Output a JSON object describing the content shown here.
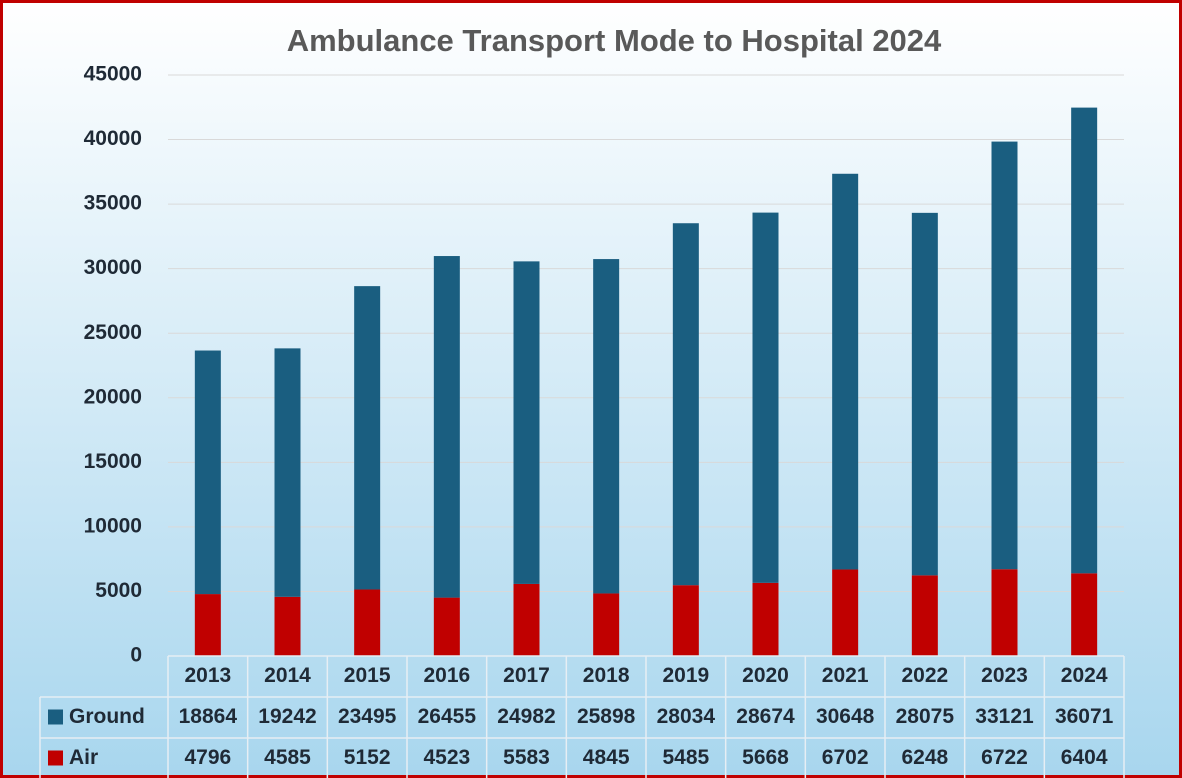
{
  "chart_data": {
    "type": "stacked_bar",
    "title": "Ambulance Transport  Mode to Hospital 2024",
    "categories": [
      "2013",
      "2014",
      "2015",
      "2016",
      "2017",
      "2018",
      "2019",
      "2020",
      "2021",
      "2022",
      "2023",
      "2024"
    ],
    "series": [
      {
        "name": "Ground",
        "color": "#1a5e80",
        "values": [
          18864,
          19242,
          23495,
          26455,
          24982,
          25898,
          28034,
          28674,
          30648,
          28075,
          33121,
          36071
        ]
      },
      {
        "name": "Air",
        "color": "#c00000",
        "values": [
          4796,
          4585,
          5152,
          4523,
          5583,
          4845,
          5485,
          5668,
          6702,
          6248,
          6722,
          6404
        ]
      }
    ],
    "ylim": [
      0,
      45000
    ],
    "yticks": [
      0,
      5000,
      10000,
      15000,
      20000,
      25000,
      30000,
      35000,
      40000,
      45000
    ],
    "grid": true,
    "data_table": true
  }
}
